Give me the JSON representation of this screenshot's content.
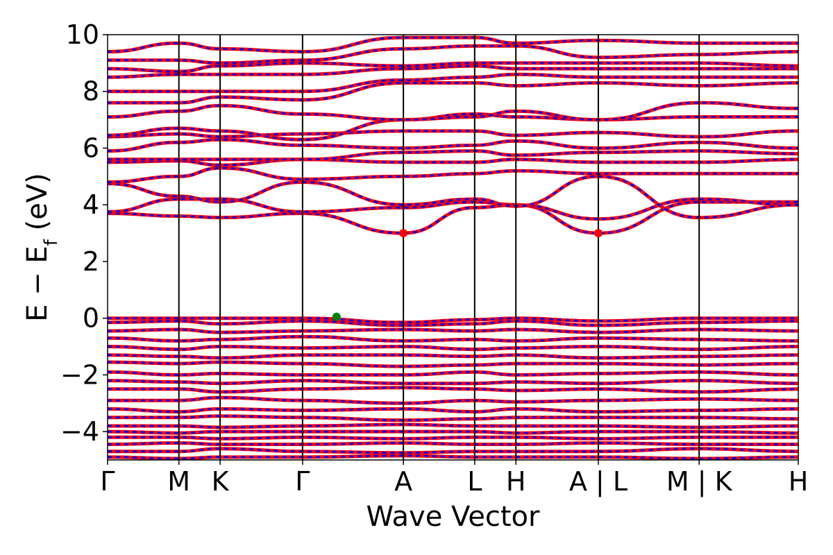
{
  "chart_data": {
    "type": "line",
    "xlabel": "Wave Vector",
    "ylabel": "E − E",
    "ylabel_subscript": "f",
    "ylabel_unit": " (eV)",
    "ylim": [
      -5,
      10
    ],
    "yticks": [
      -4,
      -2,
      0,
      2,
      4,
      6,
      8,
      10
    ],
    "ytick_labels": [
      "−4",
      "−2",
      "0",
      "2",
      "4",
      "6",
      "8",
      "10"
    ],
    "x_range": [
      0,
      12.4
    ],
    "high_symmetry_points": [
      {
        "label": "Γ",
        "x": 0.0
      },
      {
        "label": "M",
        "x": 1.28
      },
      {
        "label": "K",
        "x": 2.02
      },
      {
        "label": "Γ",
        "x": 3.5
      },
      {
        "label": "A",
        "x": 5.31
      },
      {
        "label": "L",
        "x": 6.59
      },
      {
        "label": "H",
        "x": 7.33
      },
      {
        "label": "A | L",
        "x": 8.81
      },
      {
        "label": "M | K",
        "x": 10.62
      },
      {
        "label": "H",
        "x": 12.4
      }
    ],
    "series_colors": {
      "spin_up": "#ff0000",
      "spin_down": "#0000ff"
    },
    "conduction_band_minimum": [
      {
        "x": 5.31,
        "y": 3.0
      },
      {
        "x": 8.81,
        "y": 3.0
      }
    ],
    "valence_band_maximum": [
      {
        "x": 4.11,
        "y": 0.05
      }
    ],
    "cbm_color": "#ff0000",
    "vbm_color": "#008000",
    "conduction_bands": [
      {
        "y": [
          3.7,
          3.6,
          3.55,
          3.7,
          3.0,
          3.9,
          4.0,
          3.0,
          4.1,
          4.1
        ]
      },
      {
        "y": [
          3.75,
          4.2,
          4.2,
          3.75,
          3.9,
          4.1,
          4.0,
          3.5,
          4.2,
          4.0
        ]
      },
      {
        "y": [
          4.75,
          4.3,
          4.1,
          4.8,
          4.0,
          4.2,
          3.95,
          5.0,
          3.55,
          4.0
        ]
      },
      {
        "y": [
          4.8,
          5.0,
          5.3,
          4.9,
          5.0,
          5.1,
          5.2,
          5.1,
          5.1,
          5.1
        ]
      },
      {
        "y": [
          5.5,
          5.55,
          5.4,
          5.6,
          5.5,
          5.5,
          5.6,
          5.5,
          5.5,
          5.6
        ]
      },
      {
        "y": [
          5.6,
          5.6,
          5.6,
          5.6,
          5.85,
          5.9,
          5.75,
          5.85,
          5.9,
          5.8
        ]
      },
      {
        "y": [
          5.9,
          6.2,
          6.3,
          6.1,
          6.0,
          6.1,
          6.25,
          6.0,
          6.2,
          6.0
        ]
      },
      {
        "y": [
          6.4,
          6.5,
          6.4,
          6.5,
          6.6,
          6.6,
          6.45,
          6.55,
          6.4,
          6.6
        ]
      },
      {
        "y": [
          6.45,
          6.7,
          6.6,
          6.3,
          7.0,
          7.2,
          7.1,
          7.0,
          7.1,
          7.1
        ]
      },
      {
        "y": [
          7.1,
          7.3,
          7.5,
          7.2,
          7.0,
          7.1,
          7.3,
          7.0,
          7.6,
          7.4
        ]
      },
      {
        "y": [
          7.6,
          7.6,
          7.8,
          7.7,
          8.3,
          8.3,
          8.2,
          8.3,
          8.2,
          8.3
        ]
      },
      {
        "y": [
          8.0,
          8.0,
          8.0,
          8.0,
          8.4,
          8.5,
          8.6,
          8.5,
          8.5,
          8.5
        ]
      },
      {
        "y": [
          8.5,
          8.6,
          8.6,
          8.6,
          8.8,
          8.9,
          8.8,
          8.8,
          8.8,
          8.8
        ]
      },
      {
        "y": [
          8.8,
          8.7,
          8.9,
          9.0,
          8.9,
          9.0,
          9.0,
          9.0,
          9.0,
          8.9
        ]
      },
      {
        "y": [
          9.1,
          9.1,
          9.0,
          9.1,
          9.5,
          9.6,
          9.6,
          9.2,
          9.3,
          9.4
        ]
      },
      {
        "y": [
          9.4,
          9.7,
          9.5,
          9.4,
          9.9,
          9.9,
          9.7,
          9.8,
          9.7,
          9.7
        ]
      }
    ],
    "valence_bands": [
      {
        "y": [
          0.0,
          0.0,
          0.0,
          0.0,
          -0.15,
          -0.05,
          0.0,
          -0.1,
          0.0,
          0.0
        ]
      },
      {
        "y": [
          -0.15,
          -0.1,
          -0.2,
          -0.1,
          -0.25,
          -0.2,
          -0.1,
          -0.25,
          -0.15,
          -0.1
        ]
      },
      {
        "y": [
          -0.45,
          -0.4,
          -0.5,
          -0.45,
          -0.4,
          -0.45,
          -0.4,
          -0.5,
          -0.4,
          -0.45
        ]
      },
      {
        "y": [
          -0.7,
          -0.8,
          -0.75,
          -0.65,
          -0.8,
          -0.75,
          -0.8,
          -0.7,
          -0.75,
          -0.8
        ]
      },
      {
        "y": [
          -1.0,
          -1.1,
          -1.0,
          -1.05,
          -1.0,
          -1.1,
          -1.05,
          -1.0,
          -1.1,
          -1.0
        ]
      },
      {
        "y": [
          -1.3,
          -1.35,
          -1.4,
          -1.3,
          -1.3,
          -1.35,
          -1.3,
          -1.4,
          -1.35,
          -1.3
        ]
      },
      {
        "y": [
          -1.55,
          -1.6,
          -1.55,
          -1.6,
          -1.7,
          -1.65,
          -1.6,
          -1.6,
          -1.65,
          -1.6
        ]
      },
      {
        "y": [
          -1.9,
          -2.0,
          -1.95,
          -2.0,
          -2.0,
          -1.9,
          -2.0,
          -1.95,
          -1.9,
          -2.0
        ]
      },
      {
        "y": [
          -2.2,
          -2.25,
          -2.3,
          -2.2,
          -2.3,
          -2.3,
          -2.25,
          -2.3,
          -2.2,
          -2.3
        ]
      },
      {
        "y": [
          -2.5,
          -2.5,
          -2.6,
          -2.5,
          -2.45,
          -2.5,
          -2.55,
          -2.5,
          -2.6,
          -2.5
        ]
      },
      {
        "y": [
          -2.9,
          -2.9,
          -2.8,
          -2.9,
          -3.0,
          -2.9,
          -2.95,
          -2.9,
          -2.85,
          -2.9
        ]
      },
      {
        "y": [
          -3.2,
          -3.3,
          -3.2,
          -3.25,
          -3.2,
          -3.3,
          -3.2,
          -3.3,
          -3.25,
          -3.2
        ]
      },
      {
        "y": [
          -3.5,
          -3.5,
          -3.45,
          -3.5,
          -3.6,
          -3.55,
          -3.5,
          -3.5,
          -3.5,
          -3.55
        ]
      },
      {
        "y": [
          -3.8,
          -3.8,
          -3.85,
          -3.8,
          -3.75,
          -3.8,
          -3.8,
          -3.8,
          -3.85,
          -3.8
        ]
      },
      {
        "y": [
          -4.0,
          -4.05,
          -4.0,
          -4.0,
          -4.0,
          -4.0,
          -4.05,
          -4.0,
          -4.0,
          -4.05
        ]
      },
      {
        "y": [
          -4.2,
          -4.2,
          -4.25,
          -4.2,
          -4.25,
          -4.2,
          -4.2,
          -4.25,
          -4.2,
          -4.2
        ]
      },
      {
        "y": [
          -4.45,
          -4.4,
          -4.45,
          -4.45,
          -4.4,
          -4.45,
          -4.45,
          -4.4,
          -4.45,
          -4.45
        ]
      },
      {
        "y": [
          -4.7,
          -4.7,
          -4.6,
          -4.7,
          -4.75,
          -4.7,
          -4.7,
          -4.7,
          -4.6,
          -4.7
        ]
      },
      {
        "y": [
          -4.9,
          -4.95,
          -4.9,
          -4.9,
          -4.85,
          -4.9,
          -4.9,
          -4.9,
          -4.95,
          -4.9
        ]
      }
    ]
  }
}
